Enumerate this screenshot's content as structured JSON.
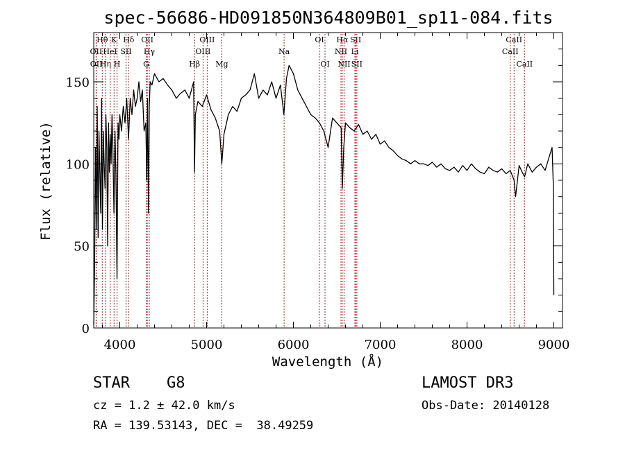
{
  "chart_data": {
    "type": "line",
    "title": "spec-56686-HD091850N364809B01_sp11-084.fits",
    "xlabel": "Wavelength (Å)",
    "ylabel": "Flux (relative)",
    "xlim": [
      3700,
      9100
    ],
    "ylim": [
      0,
      180
    ],
    "xticks": [
      4000,
      5000,
      6000,
      7000,
      8000,
      9000
    ],
    "yticks": [
      0,
      50,
      100,
      150
    ],
    "grid": false,
    "series": [
      {
        "name": "spectrum",
        "x": [
          3700,
          3710,
          3720,
          3730,
          3740,
          3750,
          3760,
          3770,
          3780,
          3790,
          3800,
          3810,
          3820,
          3830,
          3840,
          3850,
          3860,
          3870,
          3880,
          3890,
          3900,
          3910,
          3920,
          3933,
          3945,
          3955,
          3968,
          3980,
          3990,
          4000,
          4020,
          4040,
          4060,
          4080,
          4101,
          4120,
          4140,
          4160,
          4180,
          4200,
          4220,
          4240,
          4260,
          4280,
          4300,
          4310,
          4320,
          4330,
          4340,
          4350,
          4370,
          4400,
          4450,
          4500,
          4550,
          4600,
          4650,
          4700,
          4750,
          4800,
          4850,
          4861,
          4870,
          4900,
          4950,
          5000,
          5050,
          5100,
          5150,
          5175,
          5200,
          5250,
          5300,
          5350,
          5400,
          5450,
          5500,
          5550,
          5600,
          5650,
          5700,
          5750,
          5800,
          5850,
          5890,
          5920,
          5950,
          6000,
          6050,
          6100,
          6150,
          6200,
          6250,
          6300,
          6350,
          6400,
          6450,
          6500,
          6550,
          6563,
          6580,
          6600,
          6650,
          6700,
          6750,
          6800,
          6850,
          6900,
          6950,
          7000,
          7050,
          7100,
          7150,
          7200,
          7250,
          7300,
          7350,
          7400,
          7450,
          7500,
          7550,
          7600,
          7650,
          7700,
          7750,
          7800,
          7850,
          7900,
          7950,
          8000,
          8050,
          8100,
          8150,
          8200,
          8250,
          8300,
          8350,
          8400,
          8450,
          8498,
          8542,
          8560,
          8600,
          8662,
          8700,
          8750,
          8800,
          8850,
          8900,
          8950,
          8980,
          8995,
          9000
        ],
        "values": [
          2,
          40,
          110,
          60,
          135,
          55,
          120,
          95,
          70,
          140,
          60,
          120,
          100,
          85,
          130,
          110,
          50,
          125,
          95,
          118,
          100,
          130,
          110,
          70,
          120,
          95,
          30,
          125,
          115,
          130,
          120,
          135,
          125,
          140,
          115,
          140,
          130,
          145,
          135,
          140,
          150,
          138,
          145,
          120,
          125,
          90,
          140,
          70,
          135,
          150,
          148,
          155,
          150,
          152,
          148,
          145,
          140,
          143,
          145,
          140,
          150,
          95,
          130,
          138,
          135,
          142,
          133,
          128,
          120,
          100,
          118,
          130,
          135,
          132,
          140,
          142,
          145,
          155,
          140,
          145,
          142,
          150,
          140,
          148,
          130,
          152,
          160,
          155,
          145,
          140,
          135,
          130,
          128,
          125,
          120,
          110,
          128,
          125,
          122,
          85,
          110,
          125,
          122,
          120,
          124,
          118,
          120,
          115,
          118,
          112,
          114,
          110,
          108,
          105,
          103,
          102,
          100,
          102,
          100,
          100,
          99,
          101,
          98,
          100,
          97,
          96,
          98,
          95,
          99,
          96,
          100,
          97,
          95,
          94,
          98,
          96,
          95,
          97,
          94,
          96,
          90,
          80,
          99,
          92,
          100,
          95,
          98,
          100,
          96,
          105,
          110,
          85,
          20
        ]
      }
    ],
    "line_markers": [
      {
        "label": "Hθ",
        "wavelength": 3798,
        "row": 1
      },
      {
        "label": "OII",
        "wavelength": 3727,
        "row": 2
      },
      {
        "label": "OII",
        "wavelength": 3729,
        "row": 3
      },
      {
        "label": "Hη",
        "wavelength": 3835,
        "row": 3
      },
      {
        "label": "K",
        "wavelength": 3934,
        "row": 1
      },
      {
        "label": "HeI",
        "wavelength": 3889,
        "row": 2
      },
      {
        "label": "H",
        "wavelength": 3968,
        "row": 3
      },
      {
        "label": "Hδ",
        "wavelength": 4102,
        "row": 1
      },
      {
        "label": "SII",
        "wavelength": 4072,
        "row": 2
      },
      {
        "label": "OII",
        "wavelength": 4317,
        "row": 1
      },
      {
        "label": "Hγ",
        "wavelength": 4340,
        "row": 2
      },
      {
        "label": "G",
        "wavelength": 4304,
        "row": 3
      },
      {
        "label": "Hβ",
        "wavelength": 4861,
        "row": 3
      },
      {
        "label": "OIII",
        "wavelength": 5007,
        "row": 1
      },
      {
        "label": "OIII",
        "wavelength": 4959,
        "row": 2
      },
      {
        "label": "Mg",
        "wavelength": 5175,
        "row": 3
      },
      {
        "label": "Na",
        "wavelength": 5893,
        "row": 2
      },
      {
        "label": "OI",
        "wavelength": 6300,
        "row": 1
      },
      {
        "label": "OI",
        "wavelength": 6364,
        "row": 3
      },
      {
        "label": "Hα",
        "wavelength": 6563,
        "row": 1
      },
      {
        "label": "NII",
        "wavelength": 6548,
        "row": 2
      },
      {
        "label": "NII",
        "wavelength": 6584,
        "row": 3
      },
      {
        "label": "SII",
        "wavelength": 6717,
        "row": 1
      },
      {
        "label": "Li",
        "wavelength": 6708,
        "row": 2
      },
      {
        "label": "SII",
        "wavelength": 6731,
        "row": 3
      },
      {
        "label": "CaII",
        "wavelength": 8542,
        "row": 1
      },
      {
        "label": "CaII",
        "wavelength": 8498,
        "row": 2
      },
      {
        "label": "CaII",
        "wavelength": 8662,
        "row": 3
      }
    ]
  },
  "info": {
    "class_line": "STAR    G8",
    "cz_line": "cz = 1.2 ± 42.0 km/s",
    "coord_line": "RA = 139.53143, DEC =  38.49259",
    "survey": "LAMOST DR3",
    "obs_date": "Obs-Date: 20140128"
  }
}
